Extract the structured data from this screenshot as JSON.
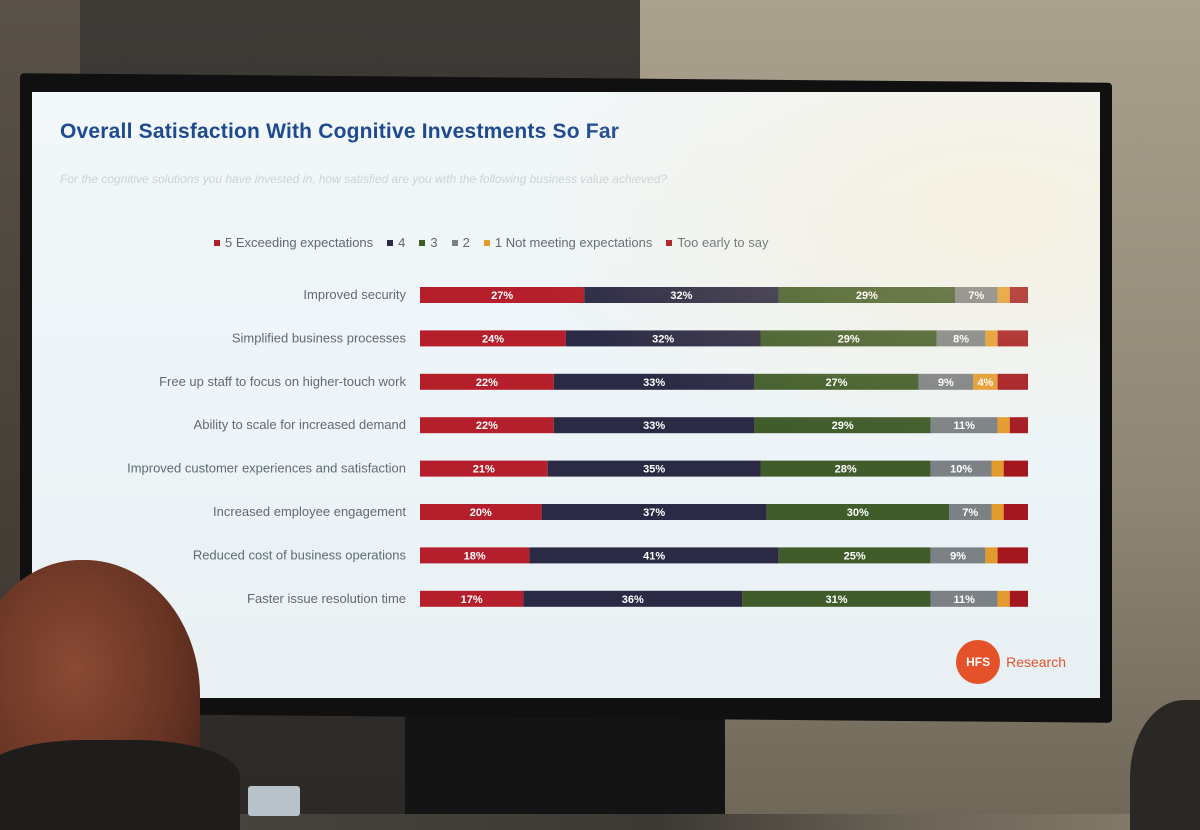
{
  "slide": {
    "title": "Overall Satisfaction With Cognitive Investments So Far",
    "subtitle": "For the cognitive solutions you have invested in, how satisfied are you with the following business value achieved?",
    "logo_mark": "HFS",
    "logo_text": "Research"
  },
  "colors": {
    "5 Exceeding expectations": "#b51f2b",
    "4": "#2b2a45",
    "3": "#3f5c2a",
    "2": "#7c8186",
    "1 Not meeting expectations": "#e39a2d",
    "Too early to say": "#a3171f"
  },
  "chart_data": {
    "type": "bar",
    "orientation": "horizontal-stacked-100",
    "title": "Overall Satisfaction With Cognitive Investments So Far",
    "categories": [
      "Improved security",
      "Simplified business processes",
      "Free up staff to focus on higher-touch work",
      "Ability to scale for increased demand",
      "Improved customer experiences and satisfaction",
      "Increased employee engagement",
      "Reduced cost of business operations",
      "Faster issue resolution time"
    ],
    "series": [
      {
        "name": "5 Exceeding expectations",
        "values": [
          27,
          24,
          22,
          22,
          21,
          20,
          18,
          17
        ],
        "labels": [
          "27%",
          "24%",
          "22%",
          "22%",
          "21%",
          "20%",
          "18%",
          "17%"
        ]
      },
      {
        "name": "4",
        "values": [
          32,
          32,
          33,
          33,
          35,
          37,
          41,
          36
        ],
        "labels": [
          "32%",
          "32%",
          "33%",
          "33%",
          "35%",
          "37%",
          "41%",
          "36%"
        ]
      },
      {
        "name": "3",
        "values": [
          29,
          29,
          27,
          29,
          28,
          30,
          25,
          31
        ],
        "labels": [
          "29%",
          "29%",
          "27%",
          "29%",
          "28%",
          "30%",
          "25%",
          "31%"
        ]
      },
      {
        "name": "2",
        "values": [
          7,
          8,
          9,
          11,
          10,
          7,
          9,
          11
        ],
        "labels": [
          "7%",
          "8%",
          "9%",
          "11%",
          "10%",
          "7%",
          "9%",
          "11%"
        ]
      },
      {
        "name": "1 Not meeting expectations",
        "values": [
          2,
          2,
          4,
          2,
          2,
          2,
          2,
          2
        ],
        "labels": [
          "",
          "",
          "4%",
          "",
          "",
          "",
          "",
          ""
        ]
      },
      {
        "name": "Too early to say",
        "values": [
          3,
          5,
          5,
          3,
          4,
          4,
          5,
          3
        ],
        "labels": [
          "",
          "",
          "",
          "",
          "",
          "",
          "",
          ""
        ]
      }
    ],
    "legend_placement": "top",
    "grid": false
  }
}
